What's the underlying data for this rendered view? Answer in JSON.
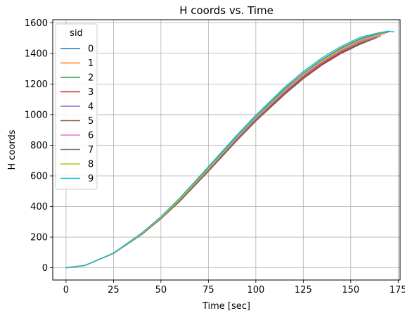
{
  "chart_data": {
    "type": "line",
    "title": "H coords vs. Time",
    "xlabel": "Time [sec]",
    "ylabel": "H coords",
    "xlim": [
      -7,
      176
    ],
    "ylim": [
      -80,
      1620
    ],
    "xticks": [
      0,
      25,
      50,
      75,
      100,
      125,
      150,
      175
    ],
    "yticks": [
      0,
      200,
      400,
      600,
      800,
      1000,
      1200,
      1400,
      1600
    ],
    "grid": true,
    "legend": {
      "title": "sid",
      "placement": "upper-left"
    },
    "series": [
      {
        "name": "0",
        "color": "#1f77b4",
        "x": [
          0,
          10,
          25,
          40,
          50,
          60,
          75,
          90,
          100,
          115,
          125,
          135,
          145,
          155,
          165,
          170
        ],
        "y": [
          0,
          15,
          95,
          225,
          330,
          450,
          650,
          855,
          985,
          1165,
          1270,
          1360,
          1435,
          1495,
          1530,
          1540
        ]
      },
      {
        "name": "1",
        "color": "#ff7f0e",
        "x": [
          0,
          10,
          25,
          40,
          50,
          60,
          75,
          90,
          100,
          115,
          125,
          135,
          145,
          155,
          165,
          168
        ],
        "y": [
          0,
          15,
          95,
          222,
          326,
          445,
          642,
          845,
          975,
          1150,
          1255,
          1345,
          1420,
          1480,
          1520,
          1530
        ]
      },
      {
        "name": "2",
        "color": "#2ca02c",
        "x": [
          0,
          10,
          25,
          40,
          50,
          60,
          75,
          90,
          100,
          115,
          125,
          135,
          145,
          155,
          165
        ],
        "y": [
          0,
          15,
          94,
          220,
          323,
          440,
          636,
          838,
          966,
          1140,
          1245,
          1335,
          1410,
          1465,
          1510
        ]
      },
      {
        "name": "3",
        "color": "#d62728",
        "x": [
          0,
          10,
          25,
          40,
          50,
          60,
          75,
          90,
          100,
          115,
          125,
          135,
          145,
          155,
          164
        ],
        "y": [
          0,
          15,
          94,
          219,
          322,
          438,
          634,
          835,
          962,
          1135,
          1240,
          1330,
          1405,
          1460,
          1505
        ]
      },
      {
        "name": "4",
        "color": "#9467bd",
        "x": [
          0,
          10,
          25,
          40,
          50,
          60,
          75,
          90,
          100,
          115,
          125,
          135,
          145,
          155,
          166
        ],
        "y": [
          0,
          15,
          94,
          220,
          324,
          442,
          638,
          840,
          968,
          1143,
          1248,
          1338,
          1413,
          1472,
          1515
        ]
      },
      {
        "name": "5",
        "color": "#8c564b",
        "x": [
          0,
          10,
          25,
          40,
          50,
          60,
          75,
          90,
          100,
          115,
          125,
          135,
          145,
          155,
          163
        ],
        "y": [
          0,
          15,
          93,
          218,
          320,
          435,
          630,
          830,
          958,
          1130,
          1235,
          1325,
          1400,
          1460,
          1500
        ]
      },
      {
        "name": "6",
        "color": "#e377c2",
        "x": [
          0,
          10,
          25,
          40,
          50,
          60,
          75,
          90,
          100,
          115,
          125,
          135,
          145,
          155,
          165,
          167
        ],
        "y": [
          0,
          15,
          95,
          222,
          326,
          446,
          644,
          848,
          978,
          1154,
          1260,
          1350,
          1425,
          1485,
          1522,
          1528
        ]
      },
      {
        "name": "7",
        "color": "#7f7f7f",
        "x": [
          0,
          10,
          25,
          40,
          50,
          60,
          75,
          90,
          100,
          115,
          125,
          135,
          145,
          155,
          165,
          169
        ],
        "y": [
          0,
          15,
          95,
          224,
          328,
          448,
          648,
          852,
          982,
          1160,
          1266,
          1356,
          1430,
          1490,
          1528,
          1536
        ]
      },
      {
        "name": "8",
        "color": "#bcbd22",
        "x": [
          0,
          10,
          25,
          40,
          50,
          60,
          75,
          90,
          100,
          115,
          125,
          135,
          145,
          155,
          165,
          168
        ],
        "y": [
          0,
          15,
          95,
          223,
          327,
          447,
          646,
          850,
          980,
          1157,
          1263,
          1353,
          1428,
          1488,
          1525,
          1532
        ]
      },
      {
        "name": "9",
        "color": "#17becf",
        "x": [
          0,
          10,
          25,
          40,
          50,
          60,
          75,
          90,
          100,
          115,
          125,
          135,
          145,
          155,
          165,
          170,
          173
        ],
        "y": [
          0,
          15,
          96,
          228,
          334,
          456,
          660,
          866,
          996,
          1176,
          1282,
          1372,
          1446,
          1505,
          1535,
          1545,
          1540
        ]
      }
    ]
  }
}
